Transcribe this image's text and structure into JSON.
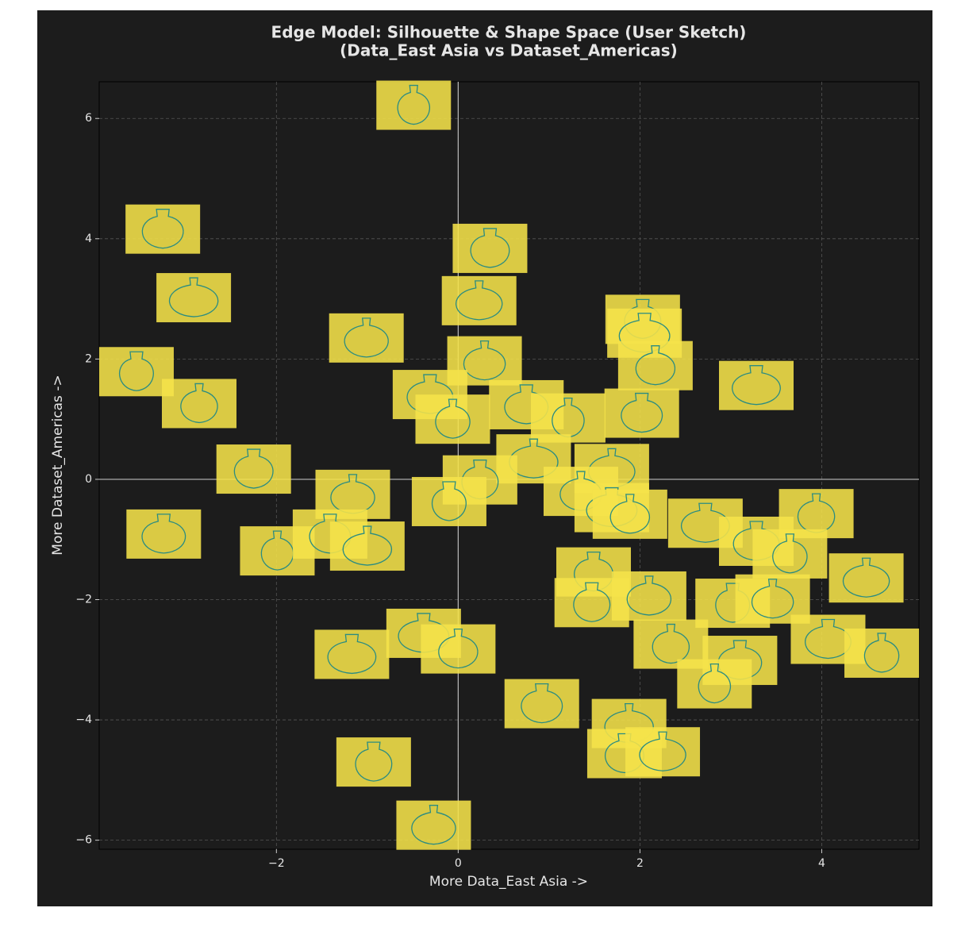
{
  "chart_data": {
    "type": "scatter",
    "title": "Edge Model: Silhouette & Shape Space (User Sketch)",
    "subtitle": "(Data_East Asia vs Dataset_Americas)",
    "x_label": "More Data_East Asia ->",
    "y_label": "More Dataset_Americas ->",
    "x": [
      -0.49,
      -3.25,
      -2.91,
      0.35,
      0.23,
      2.03,
      -1.01,
      -3.54,
      0.29,
      2.05,
      2.17,
      3.28,
      -2.85,
      -0.31,
      -0.06,
      0.75,
      1.21,
      2.02,
      0.83,
      -2.25,
      1.69,
      0.24,
      -1.16,
      -0.1,
      1.35,
      1.69,
      1.89,
      2.72,
      3.94,
      3.28,
      3.65,
      -3.24,
      -1.99,
      -1.41,
      -1.0,
      1.49,
      4.49,
      1.47,
      2.1,
      3.02,
      3.46,
      -0.38,
      0.0,
      -1.17,
      2.34,
      4.07,
      4.66,
      3.1,
      2.82,
      0.92,
      1.88,
      1.83,
      2.25,
      -0.93,
      -0.27
    ],
    "series": [
      {
        "color": "#f5e24a",
        "values": [
          6.22,
          4.16,
          3.02,
          3.84,
          2.97,
          2.66,
          2.35,
          1.79,
          1.97,
          2.43,
          1.89,
          1.56,
          1.26,
          1.41,
          1.0,
          1.24,
          1.02,
          1.1,
          0.34,
          0.17,
          0.18,
          -0.01,
          -0.25,
          -0.37,
          -0.2,
          -0.47,
          -0.58,
          -0.73,
          -0.57,
          -1.03,
          -1.24,
          -0.91,
          -1.19,
          -0.91,
          -1.11,
          -1.54,
          -1.64,
          -2.05,
          -1.94,
          -2.06,
          -1.99,
          -2.56,
          -2.82,
          -2.91,
          -2.74,
          -2.66,
          -2.89,
          -3.01,
          -3.4,
          -3.73,
          -4.06,
          -4.56,
          -4.53,
          -4.7,
          -5.75
        ]
      }
    ],
    "xlim": [
      -3.95,
      5.07
    ],
    "ylim": [
      -6.15,
      6.61
    ],
    "xticks": [
      {
        "value": -2,
        "label": "−2"
      },
      0,
      2,
      4
    ],
    "yticks": [
      {
        "value": -6,
        "label": "−6"
      },
      {
        "value": -4,
        "label": "−4"
      },
      {
        "value": -2,
        "label": "−2"
      },
      0,
      2,
      4,
      6
    ],
    "grid": true,
    "zero_lines": true,
    "outline_color": "#2a8c82"
  }
}
